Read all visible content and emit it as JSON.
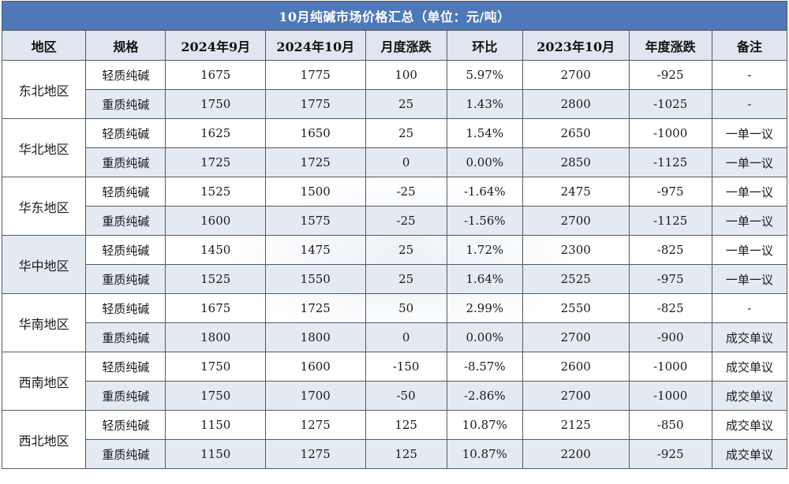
{
  "title": "10月纯碱市场价格汇总（单位：元/吨）",
  "headers": [
    "地区",
    "规格",
    "2024年9月",
    "2024年10月",
    "月度涨跌",
    "环比",
    "2023年10月",
    "年度涨跌",
    "备注"
  ],
  "regions": [
    {
      "name": "东北地区",
      "rows": [
        {
          "spec": "轻质纯碱",
          "sep": "1675",
          "oct": "1775",
          "mom": "100",
          "ratio": "5.97%",
          "last_oct": "2700",
          "yoy": "-925",
          "note": "-"
        },
        {
          "spec": "重质纯碱",
          "sep": "1750",
          "oct": "1775",
          "mom": "25",
          "ratio": "1.43%",
          "last_oct": "2800",
          "yoy": "-1025",
          "note": "-"
        }
      ]
    },
    {
      "name": "华北地区",
      "rows": [
        {
          "spec": "轻质纯碱",
          "sep": "1625",
          "oct": "1650",
          "mom": "25",
          "ratio": "1.54%",
          "last_oct": "2650",
          "yoy": "-1000",
          "note": "一单一议"
        },
        {
          "spec": "重质纯碱",
          "sep": "1725",
          "oct": "1725",
          "mom": "0",
          "ratio": "0.00%",
          "last_oct": "2850",
          "yoy": "-1125",
          "note": "一单一议"
        }
      ]
    },
    {
      "name": "华东地区",
      "rows": [
        {
          "spec": "轻质纯碱",
          "sep": "1525",
          "oct": "1500",
          "mom": "-25",
          "ratio": "-1.64%",
          "last_oct": "2475",
          "yoy": "-975",
          "note": "一单一议"
        },
        {
          "spec": "重质纯碱",
          "sep": "1600",
          "oct": "1575",
          "mom": "-25",
          "ratio": "-1.56%",
          "last_oct": "2700",
          "yoy": "-1125",
          "note": "一单一议"
        }
      ]
    },
    {
      "name": "华中地区",
      "rows": [
        {
          "spec": "轻质纯碱",
          "sep": "1450",
          "oct": "1475",
          "mom": "25",
          "ratio": "1.72%",
          "last_oct": "2300",
          "yoy": "-825",
          "note": "一单一议"
        },
        {
          "spec": "重质纯碱",
          "sep": "1525",
          "oct": "1550",
          "mom": "25",
          "ratio": "1.64%",
          "last_oct": "2525",
          "yoy": "-975",
          "note": "一单一议"
        }
      ]
    },
    {
      "name": "华南地区",
      "rows": [
        {
          "spec": "轻质纯碱",
          "sep": "1675",
          "oct": "1725",
          "mom": "50",
          "ratio": "2.99%",
          "last_oct": "2550",
          "yoy": "-825",
          "note": "-"
        },
        {
          "spec": "重质纯碱",
          "sep": "1800",
          "oct": "1800",
          "mom": "0",
          "ratio": "0.00%",
          "last_oct": "2700",
          "yoy": "-900",
          "note": "成交单议"
        }
      ]
    },
    {
      "name": "西南地区",
      "rows": [
        {
          "spec": "轻质纯碱",
          "sep": "1750",
          "oct": "1600",
          "mom": "-150",
          "ratio": "-8.57%",
          "last_oct": "2600",
          "yoy": "-1000",
          "note": "成交单议"
        },
        {
          "spec": "重质纯碱",
          "sep": "1750",
          "oct": "1700",
          "mom": "-50",
          "ratio": "-2.86%",
          "last_oct": "2700",
          "yoy": "-1000",
          "note": "成交单议"
        }
      ]
    },
    {
      "name": "西北地区",
      "rows": [
        {
          "spec": "轻质纯碱",
          "sep": "1150",
          "oct": "1275",
          "mom": "125",
          "ratio": "10.87%",
          "last_oct": "2125",
          "yoy": "-850",
          "note": "成交单议"
        },
        {
          "spec": "重质纯碱",
          "sep": "1150",
          "oct": "1275",
          "mom": "125",
          "ratio": "10.87%",
          "last_oct": "2200",
          "yoy": "-925",
          "note": "成交单议"
        }
      ]
    }
  ],
  "colors": {
    "title_bg": "#4e78b8",
    "header_bg": "#dfe6f0",
    "alt_row_bg": "#e4eaf2"
  }
}
